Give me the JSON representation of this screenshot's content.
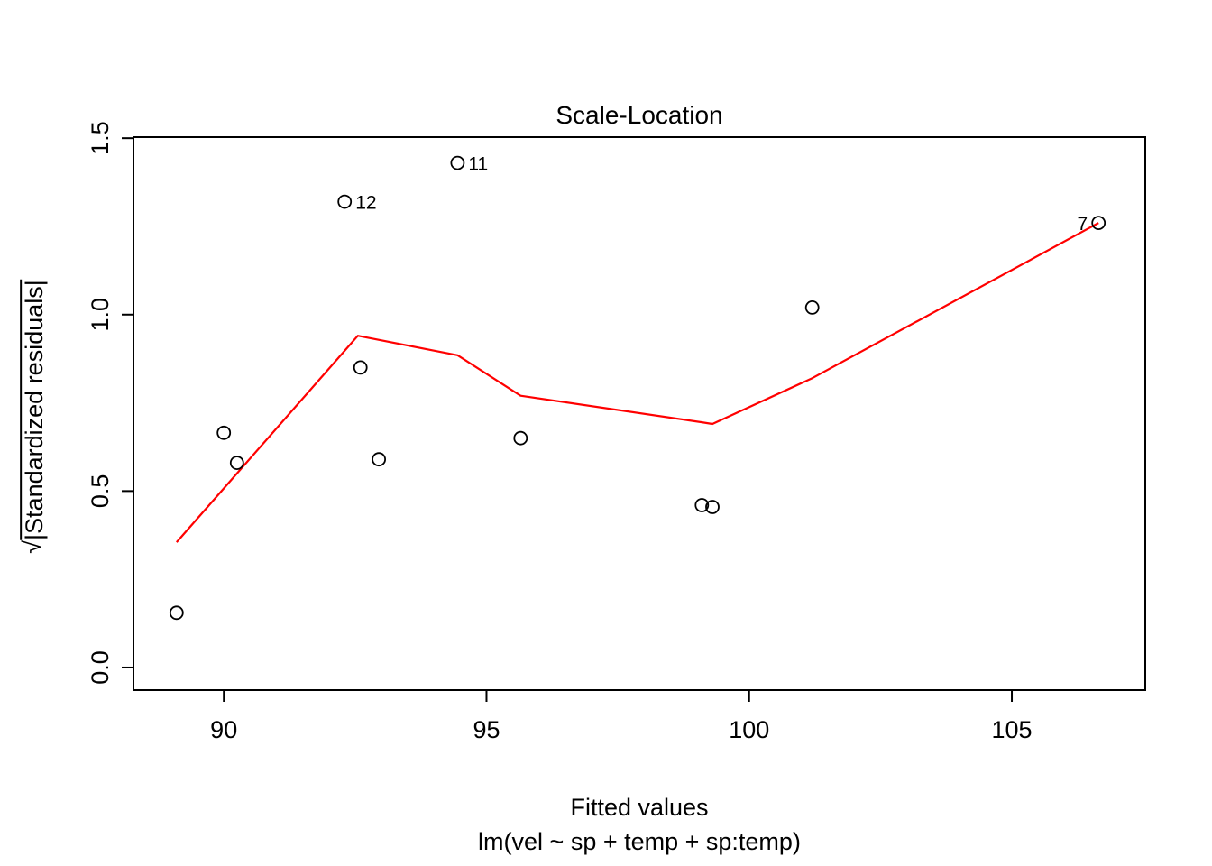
{
  "chart_data": {
    "type": "scatter",
    "title": "Scale-Location",
    "xlabel": "Fitted values",
    "model": "lm(vel ~ sp + temp + sp:temp)",
    "ylabel": "√|Standardized residuals|",
    "ylabel_sqrt": "√",
    "ylabel_inner": "|Standardized residuals|",
    "x_ticks": [
      90,
      95,
      100,
      105
    ],
    "y_ticks": [
      "0.0",
      "0.5",
      "1.0",
      "1.5"
    ],
    "xlim": [
      88.28,
      107.54
    ],
    "ylim": [
      -0.064,
      1.503
    ],
    "grid": false,
    "legend": "none",
    "points": [
      {
        "x": 89.1,
        "y": 0.155
      },
      {
        "x": 90.0,
        "y": 0.665
      },
      {
        "x": 90.25,
        "y": 0.58
      },
      {
        "x": 92.3,
        "y": 1.32,
        "label": "12",
        "label_side": "right"
      },
      {
        "x": 92.6,
        "y": 0.85
      },
      {
        "x": 92.95,
        "y": 0.59
      },
      {
        "x": 94.45,
        "y": 1.43,
        "label": "11",
        "label_side": "right"
      },
      {
        "x": 95.65,
        "y": 0.65
      },
      {
        "x": 99.1,
        "y": 0.46
      },
      {
        "x": 99.3,
        "y": 0.455
      },
      {
        "x": 101.2,
        "y": 1.02
      },
      {
        "x": 106.65,
        "y": 1.26,
        "label": "7",
        "label_side": "left"
      }
    ],
    "smooth_line": {
      "name": "lowess-smoother",
      "color": "#ff0000",
      "points": [
        {
          "x": 89.1,
          "y": 0.355
        },
        {
          "x": 92.55,
          "y": 0.94
        },
        {
          "x": 94.45,
          "y": 0.885
        },
        {
          "x": 95.65,
          "y": 0.77
        },
        {
          "x": 99.1,
          "y": 0.695
        },
        {
          "x": 99.3,
          "y": 0.69
        },
        {
          "x": 101.2,
          "y": 0.82
        },
        {
          "x": 106.65,
          "y": 1.26
        }
      ]
    }
  }
}
